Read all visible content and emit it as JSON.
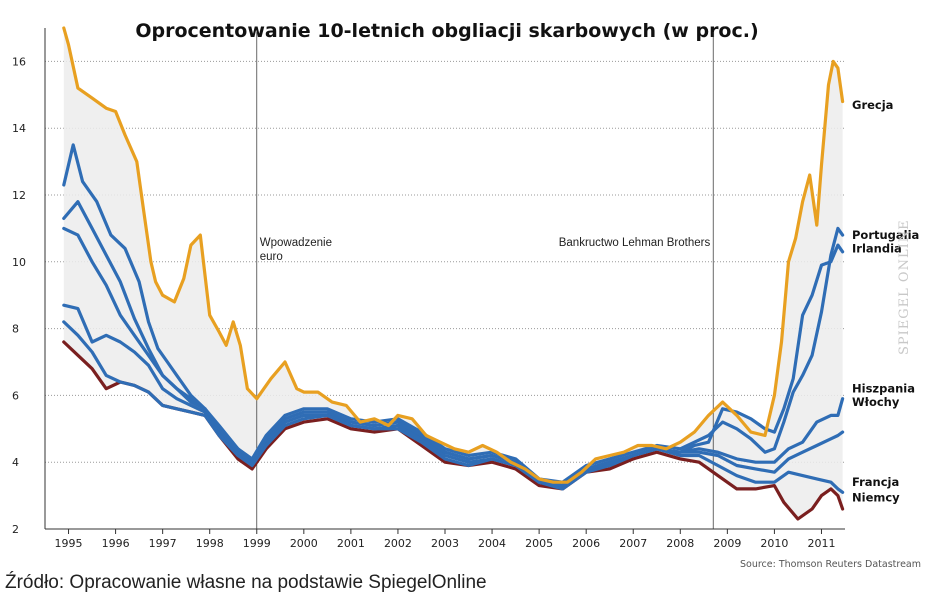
{
  "chart_data": {
    "type": "line",
    "title": "Oprocentowanie 10-letnich obgliacji skarbowych (w proc.)",
    "xlabel": "",
    "ylabel": "",
    "xlim": [
      1994.5,
      2011.5
    ],
    "ylim": [
      2,
      17
    ],
    "grid": "horizontal dotted",
    "y_ticks": [
      "2",
      "4",
      "6",
      "8",
      "10",
      "12",
      "14",
      "16"
    ],
    "x_ticks": [
      "1995",
      "1996",
      "1997",
      "1998",
      "1999",
      "2000",
      "2001",
      "2002",
      "2003",
      "2004",
      "2005",
      "2006",
      "2007",
      "2008",
      "2009",
      "2010",
      "2011"
    ],
    "annotations": [
      {
        "x": 1999.0,
        "lines": [
          "Wpowadzenie",
          "euro"
        ]
      },
      {
        "x": 2008.7,
        "lines": [
          "Bankructwo Lehman Brothers"
        ]
      }
    ],
    "series_labels": [
      {
        "text": "Grecja",
        "y": 14.7
      },
      {
        "text": "Portugalia",
        "y": 10.8
      },
      {
        "text": "Irlandia",
        "y": 10.4
      },
      {
        "text": "Hiszpania",
        "y": 6.2
      },
      {
        "text": "Włochy",
        "y": 5.8
      },
      {
        "text": "Francja",
        "y": 3.4
      },
      {
        "text": "Niemcy",
        "y": 2.95
      }
    ],
    "series": [
      {
        "color": "#E8A021",
        "x": [
          1994.9,
          1995.0,
          1995.2,
          1995.5,
          1995.8,
          1996.0,
          1996.2,
          1996.45,
          1996.6,
          1996.75,
          1996.85,
          1997.0,
          1997.25,
          1997.45,
          1997.6,
          1997.8,
          1998.0,
          1998.2,
          1998.35,
          1998.5,
          1998.65,
          1998.8,
          1999.0,
          1999.3,
          1999.6,
          1999.85,
          2000.0,
          2000.3,
          2000.6,
          2000.9,
          2001.2,
          2001.5,
          2001.8,
          2002.0,
          2002.3,
          2002.6,
          2002.9,
          2003.2,
          2003.5,
          2003.8,
          2004.1,
          2004.4,
          2004.7,
          2005.0,
          2005.3,
          2005.6,
          2005.9,
          2006.2,
          2006.5,
          2006.8,
          2007.1,
          2007.4,
          2007.7,
          2008.0,
          2008.3,
          2008.6,
          2008.9,
          2009.2,
          2009.5,
          2009.8,
          2010.0,
          2010.15,
          2010.3,
          2010.45,
          2010.6,
          2010.75,
          2010.9,
          2011.0,
          2011.15,
          2011.25,
          2011.35,
          2011.45
        ],
        "values": [
          17.0,
          16.5,
          15.2,
          14.9,
          14.6,
          14.5,
          13.8,
          13.0,
          11.5,
          10.0,
          9.4,
          9.0,
          8.8,
          9.5,
          10.5,
          10.8,
          8.4,
          7.9,
          7.5,
          8.2,
          7.5,
          6.2,
          5.9,
          6.5,
          7.0,
          6.2,
          6.1,
          6.1,
          5.8,
          5.7,
          5.2,
          5.3,
          5.1,
          5.4,
          5.3,
          4.8,
          4.6,
          4.4,
          4.3,
          4.5,
          4.3,
          4.0,
          3.8,
          3.5,
          3.4,
          3.4,
          3.7,
          4.1,
          4.2,
          4.3,
          4.5,
          4.5,
          4.4,
          4.6,
          4.9,
          5.4,
          5.8,
          5.4,
          4.9,
          4.8,
          6.0,
          7.6,
          10.0,
          10.7,
          11.8,
          12.6,
          11.1,
          12.9,
          15.3,
          16.0,
          15.8,
          14.8
        ]
      },
      {
        "color": "#2F6DB5",
        "x": [
          1994.9,
          1995.1,
          1995.3,
          1995.6,
          1995.9,
          1996.2,
          1996.5,
          1996.7,
          1996.9,
          1997.1,
          1997.3,
          1997.6,
          1997.9,
          1998.2,
          1998.6,
          1998.9,
          1999.2,
          1999.6,
          2000.0,
          2000.5,
          2001.0,
          2001.5,
          2002.0,
          2002.5,
          2003.0,
          2003.5,
          2004.0,
          2004.5,
          2005.0,
          2005.5,
          2006.0,
          2006.5,
          2007.0,
          2007.5,
          2008.0,
          2008.3,
          2008.6,
          2008.9,
          2009.2,
          2009.5,
          2009.8,
          2010.0,
          2010.2,
          2010.4,
          2010.6,
          2010.8,
          2011.0,
          2011.2,
          2011.35,
          2011.45
        ],
        "values": [
          12.3,
          13.5,
          12.4,
          11.8,
          10.8,
          10.4,
          9.4,
          8.2,
          7.4,
          7.0,
          6.6,
          6.0,
          5.6,
          5.1,
          4.4,
          4.1,
          4.8,
          5.4,
          5.6,
          5.6,
          5.3,
          5.2,
          5.3,
          4.9,
          4.4,
          4.2,
          4.3,
          4.1,
          3.5,
          3.4,
          3.9,
          4.1,
          4.3,
          4.5,
          4.4,
          4.6,
          4.8,
          5.2,
          5.0,
          4.7,
          4.3,
          4.4,
          5.2,
          6.1,
          6.6,
          7.2,
          8.5,
          10.2,
          11.0,
          10.8
        ]
      },
      {
        "color": "#2F6DB5",
        "x": [
          1994.9,
          1995.2,
          1995.5,
          1995.8,
          1996.1,
          1996.4,
          1996.7,
          1997.0,
          1997.3,
          1997.6,
          1997.9,
          1998.2,
          1998.6,
          1998.9,
          1999.2,
          1999.6,
          2000.0,
          2000.5,
          2001.0,
          2001.5,
          2002.0,
          2002.5,
          2003.0,
          2003.5,
          2004.0,
          2004.5,
          2005.0,
          2005.5,
          2006.0,
          2006.5,
          2007.0,
          2007.5,
          2008.0,
          2008.3,
          2008.6,
          2008.9,
          2009.2,
          2009.5,
          2009.8,
          2010.0,
          2010.2,
          2010.4,
          2010.6,
          2010.8,
          2011.0,
          2011.2,
          2011.35,
          2011.45
        ],
        "values": [
          11.3,
          11.8,
          11.0,
          10.2,
          9.4,
          8.3,
          7.4,
          6.6,
          6.2,
          5.8,
          5.6,
          5.0,
          4.3,
          4.0,
          4.7,
          5.3,
          5.5,
          5.5,
          5.2,
          5.1,
          5.2,
          4.8,
          4.3,
          4.1,
          4.2,
          4.0,
          3.4,
          3.3,
          3.8,
          4.0,
          4.2,
          4.4,
          4.3,
          4.5,
          4.6,
          5.6,
          5.5,
          5.3,
          5.0,
          4.9,
          5.6,
          6.5,
          8.4,
          9.0,
          9.9,
          10.0,
          10.5,
          10.3
        ]
      },
      {
        "color": "#2F6DB5",
        "x": [
          1994.9,
          1995.2,
          1995.5,
          1995.8,
          1996.1,
          1996.4,
          1996.7,
          1997.0,
          1997.3,
          1997.6,
          1997.9,
          1998.2,
          1998.6,
          1998.9,
          1999.2,
          1999.6,
          2000.0,
          2000.5,
          2001.0,
          2001.5,
          2002.0,
          2002.5,
          2003.0,
          2003.5,
          2004.0,
          2004.5,
          2005.0,
          2005.5,
          2006.0,
          2006.5,
          2007.0,
          2007.5,
          2008.0,
          2008.4,
          2008.8,
          2009.2,
          2009.6,
          2010.0,
          2010.3,
          2010.6,
          2010.9,
          2011.2,
          2011.35,
          2011.45
        ],
        "values": [
          11.0,
          10.8,
          10.0,
          9.3,
          8.4,
          7.8,
          7.2,
          6.6,
          6.2,
          5.9,
          5.6,
          5.0,
          4.4,
          4.0,
          4.7,
          5.3,
          5.5,
          5.5,
          5.2,
          5.1,
          5.2,
          4.8,
          4.3,
          4.1,
          4.2,
          4.0,
          3.4,
          3.3,
          3.8,
          4.0,
          4.2,
          4.4,
          4.3,
          4.4,
          4.3,
          4.1,
          4.0,
          4.0,
          4.4,
          4.6,
          5.2,
          5.4,
          5.4,
          5.9
        ]
      },
      {
        "color": "#2F6DB5",
        "x": [
          1994.9,
          1995.2,
          1995.5,
          1995.8,
          1996.1,
          1996.4,
          1996.7,
          1997.0,
          1997.3,
          1997.6,
          1997.9,
          1998.2,
          1998.6,
          1998.9,
          1999.2,
          1999.6,
          2000.0,
          2000.5,
          2001.0,
          2001.5,
          2002.0,
          2002.5,
          2003.0,
          2003.5,
          2004.0,
          2004.5,
          2005.0,
          2005.5,
          2006.0,
          2006.5,
          2007.0,
          2007.5,
          2008.0,
          2008.4,
          2008.8,
          2009.2,
          2009.6,
          2010.0,
          2010.3,
          2010.6,
          2010.9,
          2011.2,
          2011.35,
          2011.45
        ],
        "values": [
          8.7,
          8.6,
          7.6,
          7.8,
          7.6,
          7.3,
          6.9,
          6.2,
          5.9,
          5.7,
          5.5,
          4.9,
          4.3,
          4.0,
          4.6,
          5.2,
          5.4,
          5.4,
          5.1,
          5.0,
          5.1,
          4.7,
          4.2,
          4.0,
          4.1,
          3.9,
          3.4,
          3.3,
          3.8,
          3.9,
          4.2,
          4.4,
          4.3,
          4.3,
          4.2,
          3.9,
          3.8,
          3.7,
          4.1,
          4.3,
          4.5,
          4.7,
          4.8,
          4.9
        ]
      },
      {
        "color": "#2F6DB5",
        "x": [
          1994.9,
          1995.2,
          1995.5,
          1995.8,
          1996.1,
          1996.4,
          1996.7,
          1997.0,
          1997.3,
          1997.6,
          1997.9,
          1998.2,
          1998.6,
          1998.9,
          1999.2,
          1999.6,
          2000.0,
          2000.5,
          2001.0,
          2001.5,
          2002.0,
          2002.5,
          2003.0,
          2003.5,
          2004.0,
          2004.5,
          2005.0,
          2005.5,
          2006.0,
          2006.5,
          2007.0,
          2007.5,
          2008.0,
          2008.4,
          2008.8,
          2009.2,
          2009.6,
          2010.0,
          2010.3,
          2010.6,
          2010.9,
          2011.2,
          2011.35,
          2011.45
        ],
        "values": [
          8.2,
          7.8,
          7.3,
          6.6,
          6.4,
          6.3,
          6.1,
          5.7,
          5.6,
          5.5,
          5.4,
          4.8,
          4.2,
          3.9,
          4.5,
          5.1,
          5.3,
          5.4,
          5.1,
          5.0,
          5.0,
          4.6,
          4.1,
          3.9,
          4.1,
          3.9,
          3.4,
          3.2,
          3.7,
          3.9,
          4.2,
          4.4,
          4.2,
          4.2,
          3.9,
          3.6,
          3.4,
          3.4,
          3.7,
          3.6,
          3.5,
          3.4,
          3.2,
          3.1
        ]
      },
      {
        "color": "#7A1F1F",
        "x": [
          1994.9,
          1995.2,
          1995.5,
          1995.8,
          1996.1,
          1996.4,
          1996.7,
          1997.0,
          1997.3,
          1997.6,
          1997.9,
          1998.2,
          1998.6,
          1998.9,
          1999.2,
          1999.6,
          2000.0,
          2000.5,
          2001.0,
          2001.5,
          2002.0,
          2002.5,
          2003.0,
          2003.5,
          2004.0,
          2004.5,
          2005.0,
          2005.5,
          2006.0,
          2006.5,
          2007.0,
          2007.5,
          2008.0,
          2008.4,
          2008.8,
          2009.2,
          2009.6,
          2010.0,
          2010.2,
          2010.5,
          2010.8,
          2011.0,
          2011.2,
          2011.35,
          2011.45
        ],
        "values": [
          7.6,
          7.2,
          6.8,
          6.2,
          6.4,
          6.3,
          6.1,
          5.7,
          5.6,
          5.5,
          5.4,
          4.8,
          4.1,
          3.8,
          4.4,
          5.0,
          5.2,
          5.3,
          5.0,
          4.9,
          5.0,
          4.5,
          4.0,
          3.9,
          4.0,
          3.8,
          3.3,
          3.2,
          3.7,
          3.8,
          4.1,
          4.3,
          4.1,
          4.0,
          3.6,
          3.2,
          3.2,
          3.3,
          2.8,
          2.3,
          2.6,
          3.0,
          3.2,
          3.0,
          2.6
        ]
      }
    ],
    "source": "Source: Thomson Reuters Datastream",
    "watermark": "SPIEGEL ONLINE"
  },
  "caption": "Źródło: Opracowanie własne na podstawie SpiegelOnline"
}
